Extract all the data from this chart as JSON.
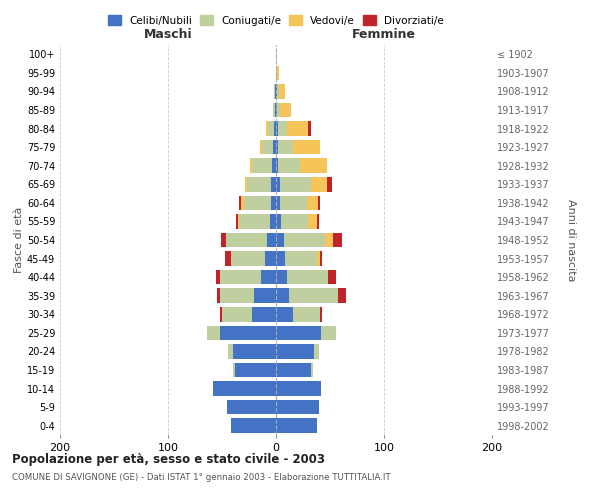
{
  "age_groups": [
    "0-4",
    "5-9",
    "10-14",
    "15-19",
    "20-24",
    "25-29",
    "30-34",
    "35-39",
    "40-44",
    "45-49",
    "50-54",
    "55-59",
    "60-64",
    "65-69",
    "70-74",
    "75-79",
    "80-84",
    "85-89",
    "90-94",
    "95-99",
    "100+"
  ],
  "birth_years": [
    "1998-2002",
    "1993-1997",
    "1988-1992",
    "1983-1987",
    "1978-1982",
    "1973-1977",
    "1968-1972",
    "1963-1967",
    "1958-1962",
    "1953-1957",
    "1948-1952",
    "1943-1947",
    "1938-1942",
    "1933-1937",
    "1928-1932",
    "1923-1927",
    "1918-1922",
    "1913-1917",
    "1908-1912",
    "1903-1907",
    "≤ 1902"
  ],
  "maschi": {
    "celibi": [
      42,
      45,
      58,
      38,
      40,
      52,
      22,
      20,
      14,
      10,
      8,
      6,
      5,
      5,
      4,
      3,
      2,
      1,
      1,
      0,
      0
    ],
    "coniugati": [
      0,
      0,
      0,
      2,
      4,
      12,
      28,
      32,
      38,
      32,
      38,
      28,
      25,
      22,
      18,
      10,
      5,
      2,
      1,
      0,
      0
    ],
    "vedovi": [
      0,
      0,
      0,
      0,
      0,
      0,
      0,
      0,
      0,
      0,
      0,
      1,
      2,
      2,
      2,
      2,
      2,
      0,
      0,
      0,
      0
    ],
    "divorziati": [
      0,
      0,
      0,
      0,
      0,
      0,
      2,
      3,
      4,
      5,
      5,
      2,
      2,
      0,
      0,
      0,
      0,
      0,
      0,
      0,
      0
    ]
  },
  "femmine": {
    "nubili": [
      38,
      40,
      42,
      32,
      35,
      42,
      16,
      12,
      10,
      8,
      7,
      5,
      4,
      4,
      2,
      2,
      2,
      1,
      1,
      0,
      0
    ],
    "coniugate": [
      0,
      0,
      0,
      2,
      5,
      14,
      25,
      45,
      38,
      30,
      38,
      25,
      25,
      28,
      20,
      14,
      8,
      3,
      2,
      1,
      0
    ],
    "vedove": [
      0,
      0,
      0,
      0,
      0,
      0,
      0,
      0,
      0,
      3,
      8,
      8,
      10,
      15,
      25,
      25,
      20,
      10,
      5,
      2,
      0
    ],
    "divorziate": [
      0,
      0,
      0,
      0,
      0,
      0,
      2,
      8,
      8,
      2,
      8,
      2,
      2,
      5,
      0,
      0,
      2,
      0,
      0,
      0,
      0
    ]
  },
  "colors": {
    "celibi": "#4472C4",
    "coniugati": "#BFCF9F",
    "vedovi": "#F5C55A",
    "divorziati": "#C0232A"
  },
  "xlim": 200,
  "title": "Popolazione per età, sesso e stato civile - 2003",
  "subtitle": "COMUNE DI SAVIGNONE (GE) - Dati ISTAT 1° gennaio 2003 - Elaborazione TUTTITALIA.IT",
  "ylabel": "Fasce di età",
  "ylabel_right": "Anni di nascita",
  "xlabel_left": "Maschi",
  "xlabel_right": "Femmine"
}
